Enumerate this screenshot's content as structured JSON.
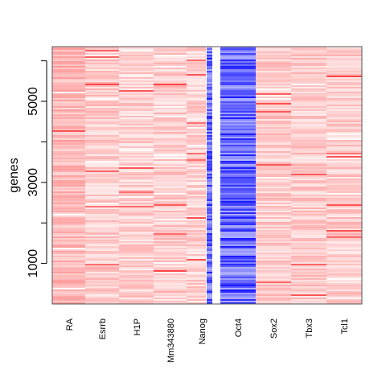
{
  "chart_data": {
    "type": "heatmap",
    "title": "",
    "xlabel": "",
    "ylabel": "genes",
    "ylim": [
      0,
      6350
    ],
    "yticks": [
      1000,
      2000,
      3000,
      4000,
      5000,
      6000
    ],
    "ytick_labels": [
      "1000",
      "",
      "3000",
      "",
      "5000",
      ""
    ],
    "columns": [
      {
        "label": "RA",
        "mean_value": 0.28
      },
      {
        "label": "Esrrb",
        "mean_value": 0.2
      },
      {
        "label": "H1P",
        "mean_value": 0.18
      },
      {
        "label": "Mm343880",
        "mean_value": 0.2
      },
      {
        "label": "Nanog",
        "mean_value": 0.17
      },
      {
        "label": "Oct4",
        "mean_value": -0.6
      },
      {
        "label": "Sox2",
        "mean_value": 0.2
      },
      {
        "label": "Tbx3",
        "mean_value": 0.2
      },
      {
        "label": "Tcl1",
        "mean_value": 0.2
      }
    ],
    "colorscale": {
      "negative": "#0000ff",
      "zero": "#ffffff",
      "positive": "#ff0000"
    }
  }
}
